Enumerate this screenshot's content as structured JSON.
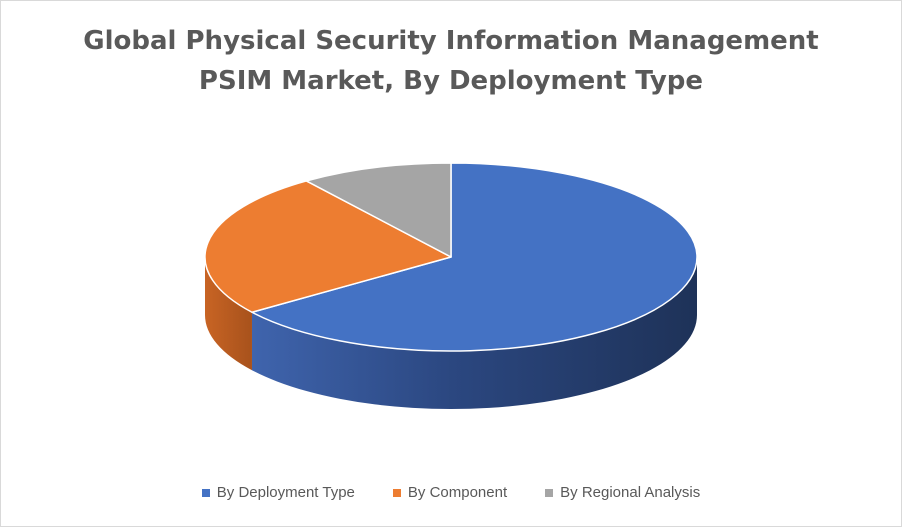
{
  "chart_data": {
    "type": "pie",
    "title_lines": [
      "Global Physical Security Information Management",
      "PSIM Market, By Deployment Type"
    ],
    "categories": [
      "By Deployment Type",
      "By Component",
      "By Regional Analysis"
    ],
    "values": [
      65,
      25,
      10
    ],
    "colors": [
      "#4472C4",
      "#ED7D31",
      "#A5A5A5"
    ],
    "legend_position": "bottom",
    "style": "3d-pie"
  }
}
